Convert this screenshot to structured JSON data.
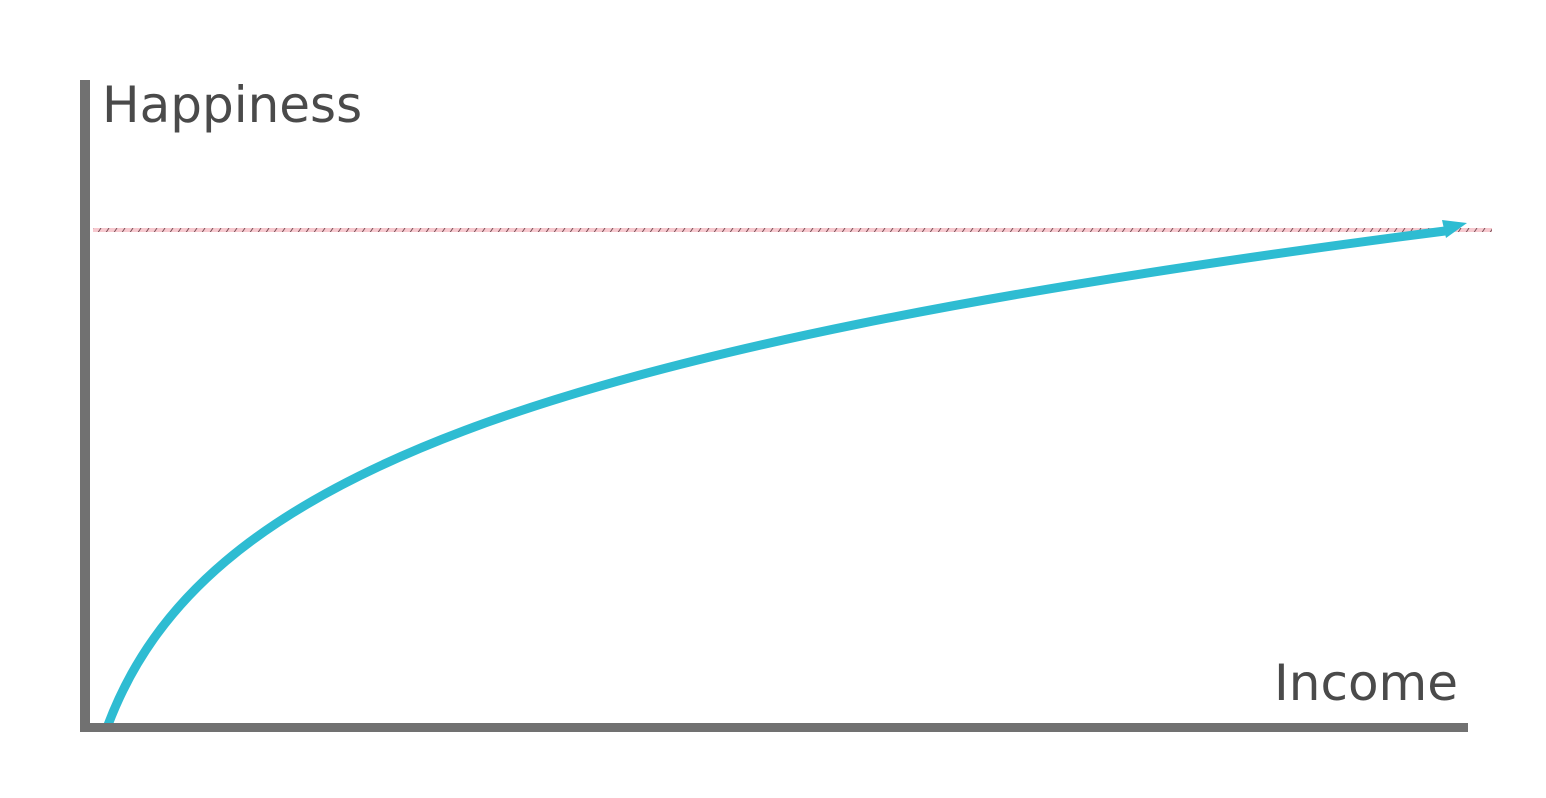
{
  "chart_data": {
    "type": "line",
    "title": "",
    "xlabel": "Income",
    "ylabel": "Happiness",
    "grid": false,
    "reference_line": "horizontal dashed",
    "colors": {
      "axis": "#717171",
      "curve": "#2ebcd2",
      "reference": "#e8a0a8",
      "text": "#4a4a4a"
    }
  }
}
